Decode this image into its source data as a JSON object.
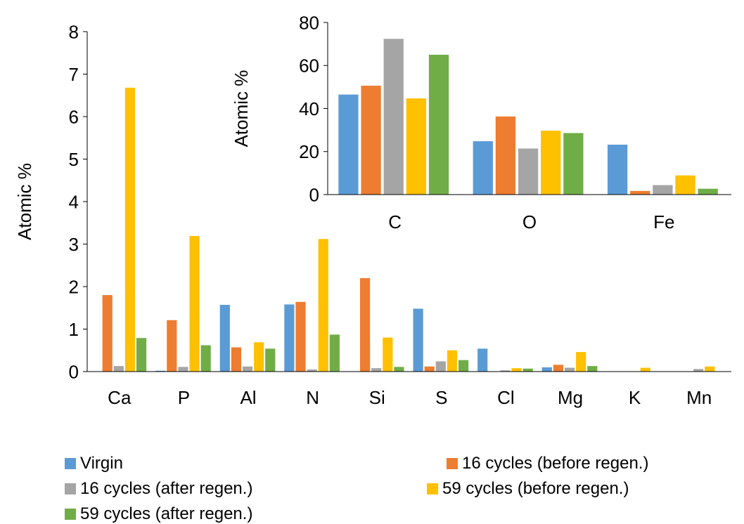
{
  "chart_data": [
    {
      "type": "bar",
      "title": "",
      "xlabel": "",
      "ylabel": "Atomic %",
      "ylim": [
        0,
        8
      ],
      "yticks": [
        "0",
        "1",
        "2",
        "3",
        "4",
        "5",
        "6",
        "7",
        "8"
      ],
      "grid": false,
      "categories": [
        "Ca",
        "P",
        "Al",
        "N",
        "Si",
        "S",
        "Cl",
        "Mg",
        "K",
        "Mn"
      ],
      "series": [
        {
          "name": "Virgin",
          "values": [
            0.0,
            0.02,
            1.57,
            1.58,
            0.0,
            1.48,
            0.54,
            0.1,
            0.0,
            0.0
          ]
        },
        {
          "name": "16 cycles (before regen.)",
          "values": [
            1.8,
            1.21,
            0.57,
            1.64,
            2.2,
            0.12,
            0.0,
            0.16,
            0.0,
            0.0
          ]
        },
        {
          "name": "16 cycles (after regen.)",
          "values": [
            0.13,
            0.11,
            0.12,
            0.05,
            0.08,
            0.24,
            0.03,
            0.09,
            0.0,
            0.06
          ]
        },
        {
          "name": "59 cycles (before regen.)",
          "values": [
            6.68,
            3.19,
            0.69,
            3.12,
            0.8,
            0.5,
            0.08,
            0.46,
            0.09,
            0.12
          ]
        },
        {
          "name": "59 cycles (after regen.)",
          "values": [
            0.79,
            0.62,
            0.54,
            0.87,
            0.11,
            0.27,
            0.07,
            0.13,
            0.0,
            0.0
          ]
        }
      ]
    },
    {
      "type": "bar",
      "title": "",
      "xlabel": "",
      "ylabel": "Atomic %",
      "ylim": [
        0,
        80
      ],
      "yticks": [
        "0",
        "20",
        "40",
        "60",
        "80"
      ],
      "grid": false,
      "categories": [
        "C",
        "O",
        "Fe"
      ],
      "series": [
        {
          "name": "Virgin",
          "values": [
            46.5,
            24.8,
            23.2
          ]
        },
        {
          "name": "16 cycles (before regen.)",
          "values": [
            50.6,
            36.3,
            1.7
          ]
        },
        {
          "name": "16 cycles (after regen.)",
          "values": [
            72.4,
            21.4,
            4.4
          ]
        },
        {
          "name": "59 cycles (before regen.)",
          "values": [
            44.7,
            29.7,
            8.9
          ]
        },
        {
          "name": "59 cycles (after regen.)",
          "values": [
            65.0,
            28.6,
            2.7
          ]
        }
      ]
    }
  ],
  "legend": {
    "placement": "bottom",
    "items": [
      {
        "label": "Virgin",
        "color": "#5B9BD5"
      },
      {
        "label": "16 cycles (before regen.)",
        "color": "#ED7D31"
      },
      {
        "label": "16 cycles (after regen.)",
        "color": "#A5A5A5"
      },
      {
        "label": "59 cycles (before regen.)",
        "color": "#FFC000"
      },
      {
        "label": "59 cycles (after regen.)",
        "color": "#70AD47"
      }
    ]
  },
  "colors": [
    "#5B9BD5",
    "#ED7D31",
    "#A5A5A5",
    "#FFC000",
    "#70AD47"
  ]
}
